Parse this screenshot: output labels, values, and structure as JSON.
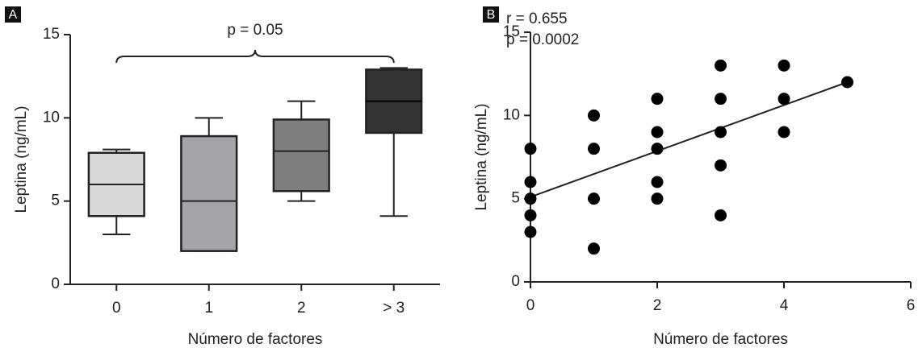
{
  "chart_data": [
    {
      "type": "box",
      "panel": "A",
      "annotations": [
        "p = 0.05"
      ],
      "x_label": "Número de factores",
      "y_label": "Leptina (ng/mL)",
      "categories": [
        "0",
        "1",
        "2",
        "> 3"
      ],
      "boxes": [
        {
          "min": 3,
          "q1": 4.1,
          "median": 6,
          "q3": 7.9,
          "max": 8.1
        },
        {
          "min": 2,
          "q1": 2,
          "median": 5,
          "q3": 8.9,
          "max": 10
        },
        {
          "min": 5,
          "q1": 5.6,
          "median": 8,
          "q3": 9.9,
          "max": 11
        },
        {
          "min": 4.1,
          "q1": 9.1,
          "median": 11,
          "q3": 12.9,
          "max": 13
        }
      ],
      "colors": [
        "#d9d9d9",
        "#a5a5a8",
        "#7f7f7f",
        "#333333"
      ],
      "ylim": [
        0,
        15
      ],
      "yticks": [
        0,
        5,
        10,
        15
      ]
    },
    {
      "type": "scatter",
      "panel": "B",
      "annotations": [
        "r = 0.655",
        "p = 0.0002"
      ],
      "x_label": "Número de factores",
      "y_label": "Leptina (ng/mL)",
      "x": [
        0,
        0,
        0,
        0,
        0,
        1,
        1,
        1,
        1,
        2,
        2,
        2,
        2,
        2,
        3,
        3,
        3,
        3,
        3,
        4,
        4,
        4,
        5
      ],
      "values": [
        8,
        6,
        5,
        4,
        3,
        10,
        8,
        5,
        2,
        11,
        9,
        8,
        6,
        5,
        13,
        11,
        9,
        7,
        4,
        13,
        11,
        9,
        12
      ],
      "color": "#000000",
      "fit_x": [
        0,
        5
      ],
      "fit_y": [
        5.1,
        12
      ],
      "xlim": [
        0,
        6
      ],
      "xticks": [
        0,
        2,
        4,
        6
      ],
      "ylim": [
        0,
        15
      ],
      "yticks": [
        0,
        5,
        10,
        15
      ]
    }
  ]
}
